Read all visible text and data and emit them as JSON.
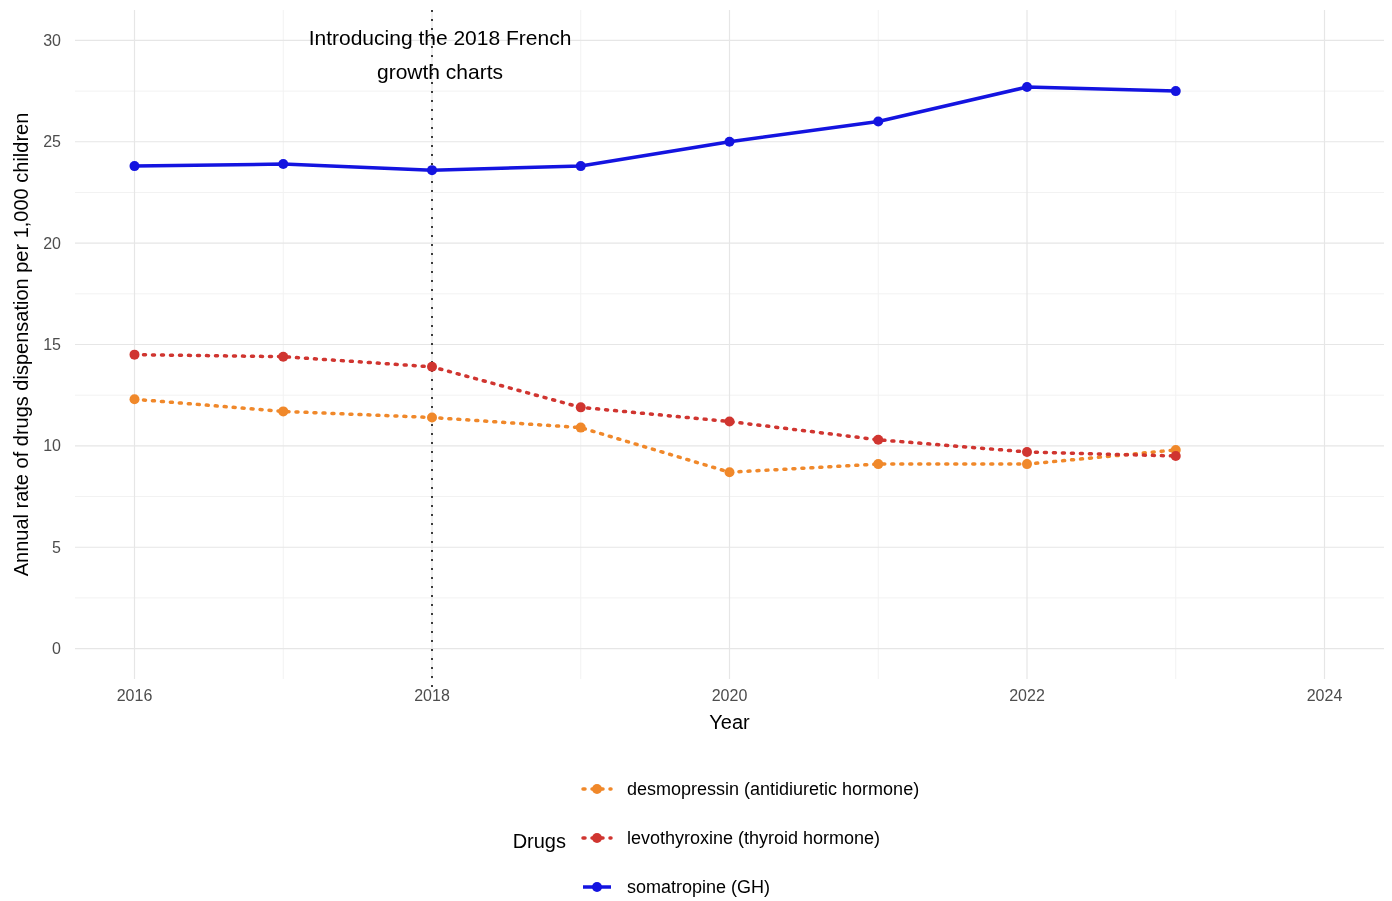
{
  "chart_data": {
    "type": "line",
    "xlabel": "Year",
    "ylabel": "Annual rate of drugs dispensation per 1,000 children",
    "legend_title": "Drugs",
    "x": [
      2016,
      2017,
      2018,
      2019,
      2020,
      2021,
      2022,
      2023
    ],
    "series": [
      {
        "name": "desmopressin (antidiuretic hormone)",
        "color": "#f0882a",
        "line_style": "dotted",
        "values": [
          12.3,
          11.7,
          11.4,
          10.9,
          8.7,
          9.1,
          9.1,
          9.8
        ]
      },
      {
        "name": "levothyroxine (thyroid hormone)",
        "color": "#d03530",
        "line_style": "dotted",
        "values": [
          14.5,
          14.4,
          13.9,
          11.9,
          11.2,
          10.3,
          9.7,
          9.5
        ]
      },
      {
        "name": "somatropine (GH)",
        "color": "#1414e0",
        "line_style": "solid",
        "values": [
          23.8,
          23.9,
          23.6,
          23.8,
          25.0,
          26.0,
          27.7,
          27.5
        ]
      }
    ],
    "xlim": [
      2015.6,
      2024.4
    ],
    "xticks": [
      2016,
      2018,
      2020,
      2022,
      2024
    ],
    "ylim": [
      -1.5,
      31.5
    ],
    "yticks": [
      0,
      5,
      10,
      15,
      20,
      25,
      30
    ],
    "grid": true,
    "legend": "bottom",
    "marker": "circle",
    "ref_lines": [
      {
        "axis": "x",
        "value": 2018,
        "label": "Introducing the 2018 French growth charts",
        "line_style": "dotted",
        "color": "#000000"
      }
    ]
  }
}
